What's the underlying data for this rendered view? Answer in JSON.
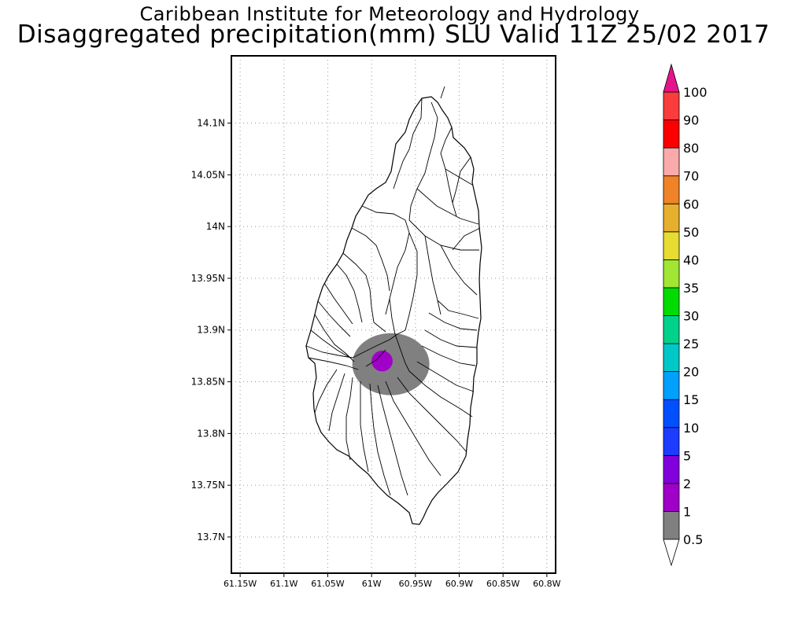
{
  "header": {
    "institution": "Caribbean Institute for Meteorology and Hydrology",
    "product": "Disaggregated precipitation(mm) SLU Valid 11Z 25/02 2017"
  },
  "map": {
    "region": "SLU",
    "lon_range": [
      -61.16,
      -60.79
    ],
    "lat_range": [
      13.665,
      14.165
    ],
    "x_tick_labels": [
      "61.15W",
      "61.1W",
      "61.05W",
      "61W",
      "60.95W",
      "60.9W",
      "60.85W",
      "60.8W"
    ],
    "y_tick_labels": [
      "14.1N",
      "14.05N",
      "14N",
      "13.95N",
      "13.9N",
      "13.85N",
      "13.8N",
      "13.75N",
      "13.7N"
    ],
    "grid": "dotted",
    "precip_areas": [
      {
        "category": "0.5-1",
        "color": "#808080",
        "center_lon": -60.978,
        "center_lat": 13.867,
        "radius_lon": 0.044,
        "radius_lat": 0.03
      },
      {
        "category": "1-2",
        "color": "#a000c8",
        "center_lon": -60.988,
        "center_lat": 13.87,
        "radius_lon": 0.012,
        "radius_lat": 0.01
      }
    ]
  },
  "colorbar": {
    "levels": [
      "0.5",
      "1",
      "2",
      "5",
      "10",
      "15",
      "20",
      "25",
      "30",
      "35",
      "40",
      "50",
      "60",
      "70",
      "80",
      "90",
      "100"
    ],
    "colors": [
      "#808080",
      "#a000c8",
      "#8200dc",
      "#1e3cff",
      "#0050ff",
      "#00a0ff",
      "#00c8c8",
      "#00d28c",
      "#00dc00",
      "#a0e632",
      "#e6dc32",
      "#e6af2d",
      "#f08228",
      "#faaaaa",
      "#fa0000",
      "#fa3c3c",
      "#f00082"
    ],
    "under_color": "#ffffff",
    "over_color": "#e6148c"
  }
}
